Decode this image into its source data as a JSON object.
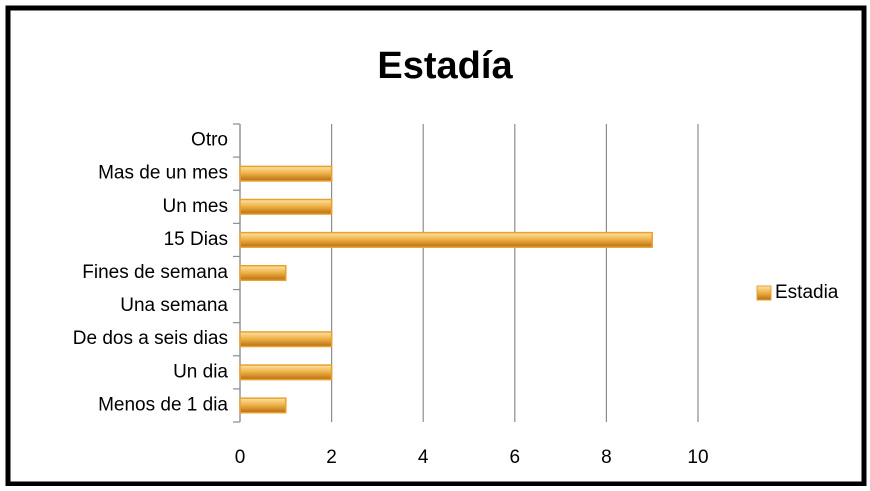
{
  "chart_data": {
    "type": "bar",
    "orientation": "horizontal",
    "title": "Estadía",
    "categories": [
      "Menos de 1 dia",
      "Un dia",
      "De dos a seis dias",
      "Una semana",
      "Fines de semana",
      "15 Dias",
      "Un mes",
      "Mas de un mes",
      "Otro"
    ],
    "series": [
      {
        "name": "Estadia",
        "color": "#e8a030",
        "values": [
          1,
          2,
          2,
          0,
          1,
          9,
          2,
          2,
          0
        ]
      }
    ],
    "xlim": [
      0,
      10
    ],
    "xticks": [
      0,
      2,
      4,
      6,
      8,
      10
    ],
    "grid": true,
    "legend": "right"
  }
}
